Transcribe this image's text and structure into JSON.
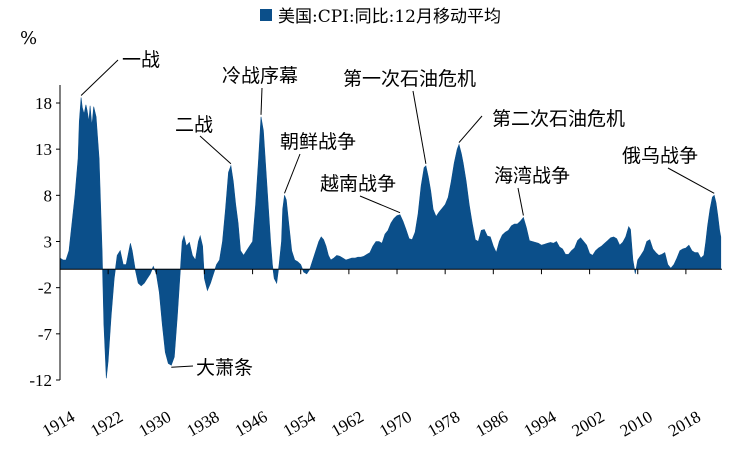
{
  "chart_data": {
    "type": "area",
    "unit_label": "%",
    "legend": [
      {
        "label": "美国:CPI:同比:12月移动平均",
        "color": "#0b4f8a"
      }
    ],
    "series": [
      {
        "name": "美国:CPI:同比:12月移动平均",
        "color": "#0b4f8a",
        "points": [
          [
            1914.0,
            1.2
          ],
          [
            1914.5,
            1.0
          ],
          [
            1915.0,
            1.0
          ],
          [
            1915.5,
            2.0
          ],
          [
            1916.0,
            5.0
          ],
          [
            1916.5,
            8.0
          ],
          [
            1917.0,
            12.0
          ],
          [
            1917.2,
            16.0
          ],
          [
            1917.5,
            18.6
          ],
          [
            1917.7,
            17.5
          ],
          [
            1918.0,
            16.8
          ],
          [
            1918.3,
            17.8
          ],
          [
            1918.5,
            17.2
          ],
          [
            1918.8,
            16.0
          ],
          [
            1919.0,
            17.7
          ],
          [
            1919.3,
            15.5
          ],
          [
            1919.6,
            17.6
          ],
          [
            1920.0,
            16.5
          ],
          [
            1920.5,
            12.0
          ],
          [
            1921.0,
            2.0
          ],
          [
            1921.3,
            -6.0
          ],
          [
            1921.7,
            -11.8
          ],
          [
            1922.0,
            -10.0
          ],
          [
            1922.5,
            -5.0
          ],
          [
            1923.0,
            -1.0
          ],
          [
            1923.5,
            1.5
          ],
          [
            1924.0,
            2.0
          ],
          [
            1924.5,
            0.5
          ],
          [
            1925.0,
            0.5
          ],
          [
            1925.3,
            1.5
          ],
          [
            1925.7,
            2.8
          ],
          [
            1926.0,
            2.0
          ],
          [
            1926.5,
            0.0
          ],
          [
            1927.0,
            -1.5
          ],
          [
            1927.5,
            -1.8
          ],
          [
            1928.0,
            -1.5
          ],
          [
            1928.5,
            -1.0
          ],
          [
            1929.0,
            -0.5
          ],
          [
            1929.5,
            0.3
          ],
          [
            1930.0,
            -0.5
          ],
          [
            1930.5,
            -2.5
          ],
          [
            1931.0,
            -6.0
          ],
          [
            1931.5,
            -9.0
          ],
          [
            1932.0,
            -10.2
          ],
          [
            1932.5,
            -10.4
          ],
          [
            1933.0,
            -9.5
          ],
          [
            1933.5,
            -5.0
          ],
          [
            1934.0,
            0.0
          ],
          [
            1934.3,
            3.0
          ],
          [
            1934.6,
            3.6
          ],
          [
            1935.0,
            2.5
          ],
          [
            1935.5,
            2.9
          ],
          [
            1936.0,
            1.5
          ],
          [
            1936.5,
            1.0
          ],
          [
            1937.0,
            3.0
          ],
          [
            1937.3,
            3.6
          ],
          [
            1937.7,
            2.5
          ],
          [
            1938.0,
            -1.0
          ],
          [
            1938.5,
            -2.3
          ],
          [
            1939.0,
            -1.5
          ],
          [
            1939.5,
            -0.5
          ],
          [
            1940.0,
            0.5
          ],
          [
            1940.5,
            1.0
          ],
          [
            1941.0,
            3.0
          ],
          [
            1941.5,
            6.5
          ],
          [
            1942.0,
            10.5
          ],
          [
            1942.4,
            11.2
          ],
          [
            1942.8,
            9.5
          ],
          [
            1943.2,
            7.0
          ],
          [
            1943.6,
            5.0
          ],
          [
            1944.0,
            2.0
          ],
          [
            1944.5,
            1.5
          ],
          [
            1945.0,
            2.0
          ],
          [
            1945.5,
            2.5
          ],
          [
            1946.0,
            3.0
          ],
          [
            1946.5,
            7.0
          ],
          [
            1947.0,
            12.0
          ],
          [
            1947.4,
            16.5
          ],
          [
            1947.8,
            15.0
          ],
          [
            1948.2,
            11.0
          ],
          [
            1948.6,
            7.0
          ],
          [
            1949.0,
            3.0
          ],
          [
            1949.3,
            0.5
          ],
          [
            1949.6,
            -1.0
          ],
          [
            1950.0,
            -1.5
          ],
          [
            1950.4,
            0.5
          ],
          [
            1950.8,
            3.0
          ],
          [
            1951.0,
            6.5
          ],
          [
            1951.3,
            8.0
          ],
          [
            1951.6,
            7.5
          ],
          [
            1952.0,
            5.0
          ],
          [
            1952.5,
            2.0
          ],
          [
            1953.0,
            1.0
          ],
          [
            1953.5,
            0.8
          ],
          [
            1954.0,
            0.5
          ],
          [
            1954.5,
            -0.3
          ],
          [
            1955.0,
            -0.5
          ],
          [
            1955.5,
            0.0
          ],
          [
            1956.0,
            1.0
          ],
          [
            1956.5,
            2.0
          ],
          [
            1957.0,
            3.0
          ],
          [
            1957.4,
            3.5
          ],
          [
            1957.8,
            3.2
          ],
          [
            1958.2,
            2.5
          ],
          [
            1958.6,
            1.5
          ],
          [
            1959.0,
            1.0
          ],
          [
            1959.5,
            1.2
          ],
          [
            1960.0,
            1.5
          ],
          [
            1960.5,
            1.4
          ],
          [
            1961.0,
            1.2
          ],
          [
            1961.5,
            1.0
          ],
          [
            1962.0,
            1.1
          ],
          [
            1962.5,
            1.2
          ],
          [
            1963.0,
            1.2
          ],
          [
            1963.5,
            1.3
          ],
          [
            1964.0,
            1.3
          ],
          [
            1964.5,
            1.4
          ],
          [
            1965.0,
            1.6
          ],
          [
            1965.5,
            1.8
          ],
          [
            1966.0,
            2.5
          ],
          [
            1966.5,
            3.0
          ],
          [
            1967.0,
            3.0
          ],
          [
            1967.5,
            2.8
          ],
          [
            1968.0,
            3.8
          ],
          [
            1968.5,
            4.2
          ],
          [
            1969.0,
            5.0
          ],
          [
            1969.5,
            5.5
          ],
          [
            1970.0,
            5.8
          ],
          [
            1970.5,
            5.9
          ],
          [
            1971.0,
            5.2
          ],
          [
            1971.5,
            4.3
          ],
          [
            1972.0,
            3.3
          ],
          [
            1972.5,
            3.2
          ],
          [
            1973.0,
            4.0
          ],
          [
            1973.5,
            6.0
          ],
          [
            1974.0,
            9.0
          ],
          [
            1974.5,
            11.0
          ],
          [
            1974.8,
            11.2
          ],
          [
            1975.2,
            10.0
          ],
          [
            1975.6,
            8.5
          ],
          [
            1976.0,
            6.5
          ],
          [
            1976.5,
            5.7
          ],
          [
            1977.0,
            6.2
          ],
          [
            1977.5,
            6.6
          ],
          [
            1978.0,
            7.0
          ],
          [
            1978.5,
            7.8
          ],
          [
            1979.0,
            9.5
          ],
          [
            1979.5,
            11.5
          ],
          [
            1980.0,
            13.0
          ],
          [
            1980.3,
            13.5
          ],
          [
            1980.7,
            12.5
          ],
          [
            1981.0,
            11.5
          ],
          [
            1981.5,
            9.5
          ],
          [
            1982.0,
            7.0
          ],
          [
            1982.5,
            5.0
          ],
          [
            1983.0,
            3.2
          ],
          [
            1983.5,
            3.0
          ],
          [
            1984.0,
            4.2
          ],
          [
            1984.5,
            4.3
          ],
          [
            1985.0,
            3.6
          ],
          [
            1985.5,
            3.5
          ],
          [
            1986.0,
            2.5
          ],
          [
            1986.5,
            1.8
          ],
          [
            1987.0,
            3.0
          ],
          [
            1987.5,
            3.7
          ],
          [
            1988.0,
            4.0
          ],
          [
            1988.5,
            4.2
          ],
          [
            1989.0,
            4.7
          ],
          [
            1989.5,
            4.9
          ],
          [
            1990.0,
            4.9
          ],
          [
            1990.5,
            5.2
          ],
          [
            1991.0,
            5.6
          ],
          [
            1991.5,
            4.5
          ],
          [
            1992.0,
            3.1
          ],
          [
            1992.5,
            3.0
          ],
          [
            1993.0,
            2.9
          ],
          [
            1993.5,
            2.8
          ],
          [
            1994.0,
            2.6
          ],
          [
            1994.5,
            2.7
          ],
          [
            1995.0,
            2.8
          ],
          [
            1995.5,
            2.9
          ],
          [
            1996.0,
            2.8
          ],
          [
            1996.5,
            3.0
          ],
          [
            1997.0,
            2.4
          ],
          [
            1997.5,
            2.2
          ],
          [
            1998.0,
            1.6
          ],
          [
            1998.5,
            1.6
          ],
          [
            1999.0,
            2.0
          ],
          [
            1999.5,
            2.3
          ],
          [
            2000.0,
            3.1
          ],
          [
            2000.5,
            3.4
          ],
          [
            2001.0,
            3.0
          ],
          [
            2001.5,
            2.6
          ],
          [
            2002.0,
            1.7
          ],
          [
            2002.5,
            1.5
          ],
          [
            2003.0,
            2.0
          ],
          [
            2003.5,
            2.3
          ],
          [
            2004.0,
            2.5
          ],
          [
            2004.5,
            2.8
          ],
          [
            2005.0,
            3.1
          ],
          [
            2005.5,
            3.4
          ],
          [
            2006.0,
            3.5
          ],
          [
            2006.5,
            3.3
          ],
          [
            2007.0,
            2.6
          ],
          [
            2007.5,
            2.9
          ],
          [
            2008.0,
            3.5
          ],
          [
            2008.5,
            4.6
          ],
          [
            2008.8,
            4.3
          ],
          [
            2009.2,
            1.0
          ],
          [
            2009.6,
            -0.5
          ],
          [
            2010.0,
            1.0
          ],
          [
            2010.5,
            1.5
          ],
          [
            2011.0,
            2.0
          ],
          [
            2011.5,
            3.0
          ],
          [
            2012.0,
            3.2
          ],
          [
            2012.5,
            2.2
          ],
          [
            2013.0,
            1.8
          ],
          [
            2013.5,
            1.5
          ],
          [
            2014.0,
            1.6
          ],
          [
            2014.5,
            1.8
          ],
          [
            2015.0,
            0.5
          ],
          [
            2015.5,
            0.1
          ],
          [
            2016.0,
            0.5
          ],
          [
            2016.5,
            1.2
          ],
          [
            2017.0,
            2.0
          ],
          [
            2017.5,
            2.2
          ],
          [
            2018.0,
            2.3
          ],
          [
            2018.5,
            2.6
          ],
          [
            2019.0,
            2.0
          ],
          [
            2019.5,
            1.8
          ],
          [
            2020.0,
            1.8
          ],
          [
            2020.5,
            1.2
          ],
          [
            2021.0,
            1.5
          ],
          [
            2021.3,
            3.0
          ],
          [
            2021.6,
            4.7
          ],
          [
            2022.0,
            6.5
          ],
          [
            2022.4,
            7.8
          ],
          [
            2022.7,
            8.0
          ],
          [
            2023.0,
            7.2
          ],
          [
            2023.3,
            5.8
          ],
          [
            2023.6,
            4.2
          ],
          [
            2023.8,
            3.5
          ]
        ]
      }
    ],
    "y_axis": {
      "min": -12,
      "max": 18,
      "ticks": [
        18,
        13,
        8,
        3,
        -2,
        -7,
        -12
      ]
    },
    "x_axis": {
      "min": 1914,
      "max": 2024,
      "ticks": [
        1914,
        1922,
        1930,
        1938,
        1946,
        1954,
        1962,
        1970,
        1978,
        1986,
        1994,
        2002,
        2010,
        2018
      ],
      "label_rotation_deg": -30
    },
    "grid": false,
    "legend_position": "top",
    "annotations": [
      {
        "text": "一战",
        "year": 1917.5,
        "value": 18.6
      },
      {
        "text": "大萧条",
        "year": 1932.5,
        "value": -10.4
      },
      {
        "text": "二战",
        "year": 1942.4,
        "value": 11.2
      },
      {
        "text": "冷战序幕",
        "year": 1947.4,
        "value": 16.5
      },
      {
        "text": "朝鲜战争",
        "year": 1951.3,
        "value": 8.0
      },
      {
        "text": "越南战争",
        "year": 1970.5,
        "value": 5.9
      },
      {
        "text": "第一次石油危机",
        "year": 1974.8,
        "value": 11.2
      },
      {
        "text": "第二次石油危机",
        "year": 1980.3,
        "value": 13.5
      },
      {
        "text": "海湾战争",
        "year": 1991.0,
        "value": 5.6
      },
      {
        "text": "俄乌战争",
        "year": 2022.7,
        "value": 8.0
      }
    ]
  }
}
